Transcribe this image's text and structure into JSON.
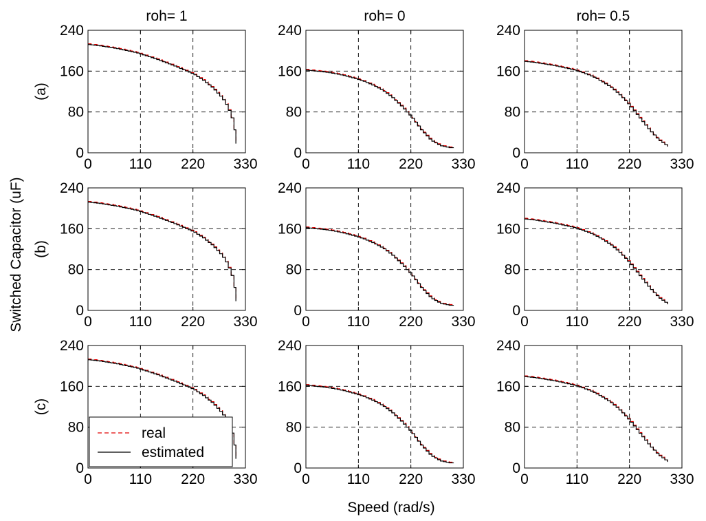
{
  "figure": {
    "ylabel": "Switched Capacitor (uF)",
    "xlabel": "Speed (rad/s)",
    "column_titles": [
      "roh= 1",
      "roh= 0",
      "roh= 0.5"
    ],
    "row_labels": [
      "(a)",
      "(b)",
      "(c)"
    ],
    "legend": {
      "real": "real",
      "estimated": "estimated"
    }
  },
  "chart_data": {
    "type": "line",
    "layout": "3x3 grid of subplots",
    "xlabel": "Speed (rad/s)",
    "ylabel": "Switched Capacitor (uF)",
    "xlim": [
      0,
      330
    ],
    "ylim": [
      0,
      240
    ],
    "xticks": [
      0,
      110,
      220,
      330
    ],
    "yticks": [
      0,
      80,
      160,
      240
    ],
    "grid": true,
    "legend_position": "lower-left of subplot (c), roh= 1",
    "series_names": [
      "real",
      "estimated"
    ],
    "series_styles": {
      "real": "red dashed",
      "estimated": "black solid staircase"
    },
    "columns": [
      {
        "title": "roh= 1",
        "curve": [
          [
            0,
            212
          ],
          [
            20,
            210
          ],
          [
            40,
            207
          ],
          [
            60,
            204
          ],
          [
            80,
            200
          ],
          [
            100,
            196
          ],
          [
            120,
            190
          ],
          [
            140,
            184
          ],
          [
            160,
            177
          ],
          [
            180,
            170
          ],
          [
            200,
            162
          ],
          [
            220,
            154
          ],
          [
            240,
            142
          ],
          [
            260,
            127
          ],
          [
            280,
            107
          ],
          [
            290,
            92
          ],
          [
            298,
            74
          ],
          [
            303,
            60
          ],
          [
            306,
            45
          ],
          [
            308,
            30
          ],
          [
            310,
            18
          ]
        ]
      },
      {
        "title": "roh= 0",
        "curve": [
          [
            0,
            162
          ],
          [
            20,
            160
          ],
          [
            40,
            158
          ],
          [
            60,
            155
          ],
          [
            80,
            151
          ],
          [
            100,
            146
          ],
          [
            120,
            140
          ],
          [
            140,
            132
          ],
          [
            160,
            122
          ],
          [
            180,
            108
          ],
          [
            200,
            90
          ],
          [
            220,
            70
          ],
          [
            240,
            45
          ],
          [
            260,
            25
          ],
          [
            280,
            14
          ],
          [
            300,
            10
          ],
          [
            310,
            10
          ]
        ]
      },
      {
        "title": "roh= 0.5",
        "curve": [
          [
            0,
            179
          ],
          [
            20,
            177
          ],
          [
            40,
            174
          ],
          [
            60,
            171
          ],
          [
            80,
            167
          ],
          [
            100,
            163
          ],
          [
            120,
            157
          ],
          [
            140,
            150
          ],
          [
            160,
            140
          ],
          [
            180,
            128
          ],
          [
            200,
            112
          ],
          [
            220,
            92
          ],
          [
            240,
            68
          ],
          [
            260,
            45
          ],
          [
            280,
            25
          ],
          [
            300,
            12
          ]
        ]
      }
    ],
    "rows": [
      "(a)",
      "(b)",
      "(c)"
    ]
  }
}
